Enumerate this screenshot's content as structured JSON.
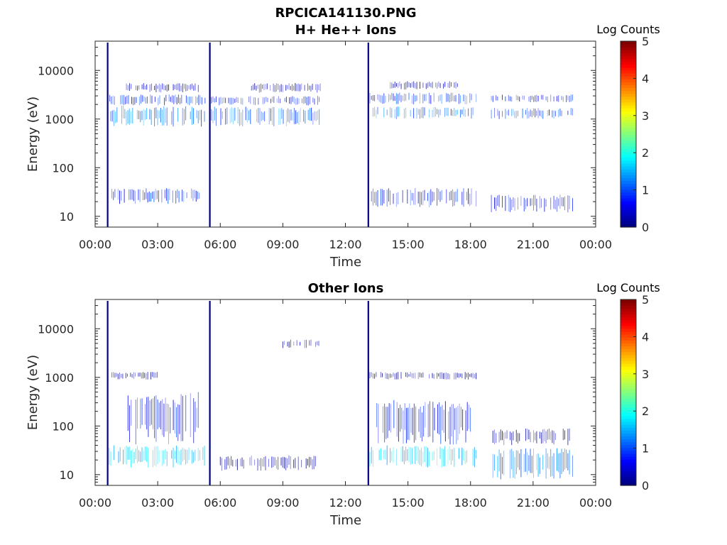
{
  "figure_title": "RPCICA141130.PNG",
  "chart_data": [
    {
      "type": "heatmap",
      "title": "H+ He++ Ions",
      "xlabel": "Time",
      "ylabel": "Energy (eV)",
      "x_tick_labels": [
        "00:00",
        "03:00",
        "06:00",
        "09:00",
        "12:00",
        "15:00",
        "18:00",
        "21:00",
        "00:00"
      ],
      "x_tick_hours": [
        0,
        3,
        6,
        9,
        12,
        15,
        18,
        21,
        24
      ],
      "xlim_hours": [
        0,
        24
      ],
      "y_scale": "log",
      "ylim": [
        6,
        40000
      ],
      "y_tick_labels": [
        "10",
        "100",
        "1000",
        "10000"
      ],
      "y_tick_values": [
        10,
        100,
        1000,
        10000
      ],
      "colorbar": {
        "title": "Log Counts",
        "tick_labels": [
          "0",
          "1",
          "2",
          "3",
          "4",
          "5"
        ],
        "range": [
          0,
          5
        ],
        "colormap": "jet"
      },
      "spikes_hours": [
        0.6,
        5.5,
        13.1
      ],
      "bands": [
        {
          "t_start": 0.6,
          "t_end": 5.3,
          "e_low": 700,
          "e_high": 1900,
          "level": 1.2
        },
        {
          "t_start": 0.7,
          "t_end": 5.3,
          "e_low": 1900,
          "e_high": 3200,
          "level": 0.8
        },
        {
          "t_start": 1.5,
          "t_end": 5.0,
          "e_low": 3500,
          "e_high": 5500,
          "level": 0.3
        },
        {
          "t_start": 0.8,
          "t_end": 5.2,
          "e_low": 18,
          "e_high": 38,
          "level": 0.7
        },
        {
          "t_start": 5.5,
          "t_end": 10.8,
          "e_low": 700,
          "e_high": 1800,
          "level": 1.1
        },
        {
          "t_start": 5.5,
          "t_end": 10.8,
          "e_low": 1900,
          "e_high": 3000,
          "level": 0.7
        },
        {
          "t_start": 7.5,
          "t_end": 10.8,
          "e_low": 3500,
          "e_high": 5500,
          "level": 0.3
        },
        {
          "t_start": 13.1,
          "t_end": 18.3,
          "e_low": 1000,
          "e_high": 1800,
          "level": 1.1
        },
        {
          "t_start": 13.1,
          "t_end": 18.3,
          "e_low": 2000,
          "e_high": 3500,
          "level": 0.8
        },
        {
          "t_start": 14.0,
          "t_end": 17.5,
          "e_low": 4000,
          "e_high": 6000,
          "level": 0.3
        },
        {
          "t_start": 13.1,
          "t_end": 18.3,
          "e_low": 15,
          "e_high": 38,
          "level": 0.7
        },
        {
          "t_start": 19.0,
          "t_end": 22.9,
          "e_low": 1000,
          "e_high": 1700,
          "level": 0.9
        },
        {
          "t_start": 19.0,
          "t_end": 22.9,
          "e_low": 2200,
          "e_high": 3200,
          "level": 0.6
        },
        {
          "t_start": 19.0,
          "t_end": 22.9,
          "e_low": 12,
          "e_high": 28,
          "level": 0.4
        }
      ]
    },
    {
      "type": "heatmap",
      "title": "Other Ions",
      "xlabel": "Time",
      "ylabel": "Energy (eV)",
      "x_tick_labels": [
        "00:00",
        "03:00",
        "06:00",
        "09:00",
        "12:00",
        "15:00",
        "18:00",
        "21:00",
        "00:00"
      ],
      "x_tick_hours": [
        0,
        3,
        6,
        9,
        12,
        15,
        18,
        21,
        24
      ],
      "xlim_hours": [
        0,
        24
      ],
      "y_scale": "log",
      "ylim": [
        6,
        40000
      ],
      "y_tick_labels": [
        "10",
        "100",
        "1000",
        "10000"
      ],
      "y_tick_values": [
        10,
        100,
        1000,
        10000
      ],
      "colorbar": {
        "title": "Log Counts",
        "tick_labels": [
          "0",
          "1",
          "2",
          "3",
          "4",
          "5"
        ],
        "range": [
          0,
          5
        ],
        "colormap": "jet"
      },
      "spikes_hours": [
        0.6,
        5.5,
        13.1
      ],
      "bands": [
        {
          "t_start": 0.6,
          "t_end": 5.3,
          "e_low": 14,
          "e_high": 40,
          "level": 1.7
        },
        {
          "t_start": 1.5,
          "t_end": 5.0,
          "e_low": 40,
          "e_high": 500,
          "level": 0.6
        },
        {
          "t_start": 0.8,
          "t_end": 3.0,
          "e_low": 900,
          "e_high": 1300,
          "level": 0.2
        },
        {
          "t_start": 6.0,
          "t_end": 10.8,
          "e_low": 12,
          "e_high": 25,
          "level": 0.1
        },
        {
          "t_start": 9.0,
          "t_end": 10.8,
          "e_low": 4000,
          "e_high": 6000,
          "level": 0.15
        },
        {
          "t_start": 13.1,
          "t_end": 18.3,
          "e_low": 14,
          "e_high": 40,
          "level": 1.6
        },
        {
          "t_start": 13.5,
          "t_end": 18.0,
          "e_low": 40,
          "e_high": 350,
          "level": 0.6
        },
        {
          "t_start": 13.1,
          "t_end": 18.3,
          "e_low": 900,
          "e_high": 1300,
          "level": 0.2
        },
        {
          "t_start": 19.0,
          "t_end": 22.9,
          "e_low": 8,
          "e_high": 35,
          "level": 1.2
        },
        {
          "t_start": 19.0,
          "t_end": 22.9,
          "e_low": 40,
          "e_high": 90,
          "level": 0.2
        }
      ]
    }
  ]
}
